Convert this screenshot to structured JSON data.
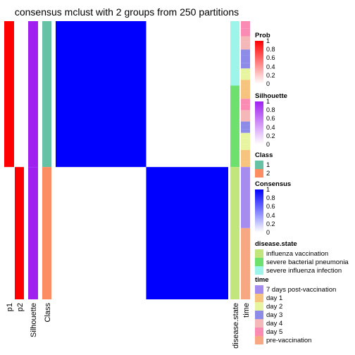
{
  "title": "consensus mclust with 2 groups from 250 partitions",
  "chart_data": {
    "type": "heatmap",
    "samples": 82,
    "class_sizes": [
      43,
      39
    ],
    "matrix": "consensus = 1 within each class block, 0 between classes",
    "annotation_tracks": {
      "p1": {
        "class1": 1,
        "class2": 0
      },
      "p2": {
        "class1": 0,
        "class2": 1
      },
      "silhouette": {
        "class1": 1,
        "class2": 1
      },
      "class": {
        "class1": 1,
        "class2": 2
      }
    },
    "disease_state_counts": {
      "severe influenza infection": 19,
      "severe bacterial pneumonia": 24,
      "influenza vaccination": 39
    },
    "time_sequence_class1": [
      "day 5",
      "day 5",
      "day 4",
      "day 4",
      "day 3",
      "day 3",
      "day 3",
      "day 2",
      "day 2",
      "day 1",
      "day 1",
      "day 1",
      "day 5",
      "day 5",
      "day 4",
      "day 4",
      "day 3",
      "day 3",
      "day 3",
      "day 2",
      "day 2",
      "day 2",
      "day 1",
      "day 1",
      "day 1"
    ],
    "time_sequence_class2": [
      "7 days post-vaccination",
      "pre-vaccination"
    ],
    "time_counts_class1_weights": [
      4,
      4,
      3,
      4,
      3,
      4,
      3,
      3,
      3,
      3,
      3,
      4,
      3,
      3,
      3,
      3,
      2,
      2,
      2,
      3,
      3,
      3,
      3,
      3,
      3
    ],
    "time_counts_class2": [
      18,
      21
    ]
  },
  "track_labels": {
    "p1": "p1",
    "p2": "p2",
    "silhouette": "Silhouette",
    "class": "Class",
    "disease": "disease.state",
    "time": "time"
  },
  "legends": {
    "prob": {
      "title": "Prob",
      "ticks": [
        "1",
        "0.8",
        "0.6",
        "0.4",
        "0.2",
        "0"
      ],
      "color": "#ff0000"
    },
    "silhouette": {
      "title": "Silhouette",
      "ticks": [
        "1",
        "0.8",
        "0.6",
        "0.4",
        "0.2",
        "0"
      ],
      "color": "#a020f0"
    },
    "class": {
      "title": "Class",
      "items": [
        {
          "label": "1",
          "color": "#66c2a5"
        },
        {
          "label": "2",
          "color": "#fc8d62"
        }
      ]
    },
    "consensus": {
      "title": "Consensus",
      "ticks": [
        "1",
        "0.8",
        "0.6",
        "0.4",
        "0.2",
        "0"
      ],
      "color": "#0000ff"
    },
    "disease": {
      "title": "disease.state",
      "items": [
        {
          "label": "influenza vaccination",
          "color": "#c2e67c"
        },
        {
          "label": "severe bacterial pneumonia",
          "color": "#6de06d"
        },
        {
          "label": "severe influenza infection",
          "color": "#9cf5e8"
        }
      ]
    },
    "time": {
      "title": "time",
      "items": [
        {
          "label": "7 days post-vaccination",
          "color": "#a78cf0"
        },
        {
          "label": "day 1",
          "color": "#f7c47f"
        },
        {
          "label": "day 2",
          "color": "#e8f5a0"
        },
        {
          "label": "day 3",
          "color": "#8c8ce8"
        },
        {
          "label": "day 4",
          "color": "#f5b8b8"
        },
        {
          "label": "day 5",
          "color": "#fa8cb4"
        },
        {
          "label": "pre-vaccination",
          "color": "#f7a882"
        }
      ]
    }
  },
  "colors": {
    "prob": "#ff0000",
    "silhouette": "#a020f0",
    "consensus": "#0000ff"
  }
}
